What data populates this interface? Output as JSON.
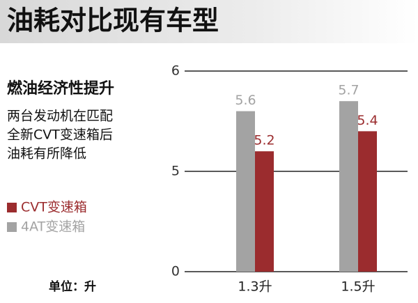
{
  "chart_data": {
    "type": "bar",
    "title": "油耗对比现有车型",
    "subtitle": "燃油经济性提升",
    "description": [
      "两台发动机在匹配",
      "全新CVT变速箱后",
      "油耗有所降低"
    ],
    "unit_label": "单位：升",
    "categories": [
      "1.3升",
      "1.5升"
    ],
    "series": [
      {
        "name": "CVT变速箱",
        "color": "#9b2c2e",
        "values": [
          5.2,
          5.4
        ]
      },
      {
        "name": "4AT变速箱",
        "color": "#a3a3a3",
        "values": [
          5.6,
          5.7
        ]
      }
    ],
    "ylim": [
      0,
      6
    ],
    "yticks": [
      0,
      5,
      6
    ],
    "grid": true,
    "legend": "left"
  }
}
